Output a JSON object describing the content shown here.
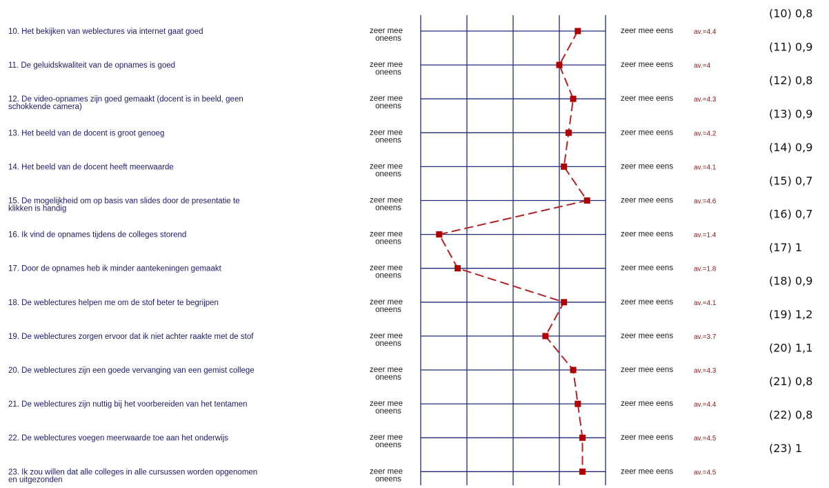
{
  "chart_data": {
    "type": "line",
    "scale": {
      "min": 1,
      "max": 5,
      "left_label_line1": "zeer mee",
      "left_label_line2": "oneens",
      "right_label": "zeer mee eens"
    },
    "grid": true,
    "items": [
      {
        "question": [
          "10. Het bekijken van weblectures via internet gaat goed"
        ],
        "average": 4.4,
        "average_label": "av.=4.4",
        "sd_label": "(10) 0,8"
      },
      {
        "question": [
          "11. De geluidskwaliteit van de opnames is goed"
        ],
        "average": 4.0,
        "average_label": "av.=4",
        "sd_label": "(11) 0,9"
      },
      {
        "question": [
          "12. De video-opnames zijn goed gemaakt (docent is in beeld, geen",
          "schokkende camera)"
        ],
        "average": 4.3,
        "average_label": "av.=4.3",
        "sd_label": "(12) 0,8"
      },
      {
        "question": [
          "13. Het beeld van de docent is groot genoeg"
        ],
        "average": 4.2,
        "average_label": "av.=4.2",
        "sd_label": "(13) 0,9"
      },
      {
        "question": [
          "14. Het beeld van de docent heeft meerwaarde"
        ],
        "average": 4.1,
        "average_label": "av.=4.1",
        "sd_label": "(14) 0,9"
      },
      {
        "question": [
          "15. De mogelijkheid om op basis van slides door de presentatie te",
          "klikken is handig"
        ],
        "average": 4.6,
        "average_label": "av.=4.6",
        "sd_label": "(15) 0,7"
      },
      {
        "question": [
          "16. Ik vind de opnames tijdens de colleges storend"
        ],
        "average": 1.4,
        "average_label": "av.=1.4",
        "sd_label": "(16) 0,7"
      },
      {
        "question": [
          "17. Door de opnames heb ik minder aantekeningen gemaakt"
        ],
        "average": 1.8,
        "average_label": "av.=1.8",
        "sd_label": "(17) 1"
      },
      {
        "question": [
          "18. De weblectures helpen me om de stof beter te begrijpen"
        ],
        "average": 4.1,
        "average_label": "av.=4.1",
        "sd_label": "(18) 0,9"
      },
      {
        "question": [
          "19. De weblectures zorgen ervoor dat ik niet achter raakte met de stof"
        ],
        "average": 3.7,
        "average_label": "av.=3.7",
        "sd_label": "(19) 1,2"
      },
      {
        "question": [
          "20. De weblectures zijn een goede vervanging van een gemist college"
        ],
        "average": 4.3,
        "average_label": "av.=4.3",
        "sd_label": "(20) 1,1"
      },
      {
        "question": [
          "21. De weblectures zijn nuttig bij het voorbereiden van het tentamen"
        ],
        "average": 4.4,
        "average_label": "av.=4.4",
        "sd_label": "(21) 0,8"
      },
      {
        "question": [
          "22. De weblectures voegen meerwaarde toe aan het onderwijs"
        ],
        "average": 4.5,
        "average_label": "av.=4.5",
        "sd_label": "(22) 0,8"
      },
      {
        "question": [
          "23. Ik zou willen dat alle colleges in alle cursussen worden opgenomen",
          "en uitgezonden"
        ],
        "average": 4.5,
        "average_label": "av.=4.5",
        "sd_label": "(23) 1"
      }
    ],
    "colors": {
      "grid": "#1f2a7a",
      "line": "#b22222",
      "marker": "#b00000",
      "question_text": "#1a1a6e",
      "avg_text": "#8b1a1a"
    }
  }
}
